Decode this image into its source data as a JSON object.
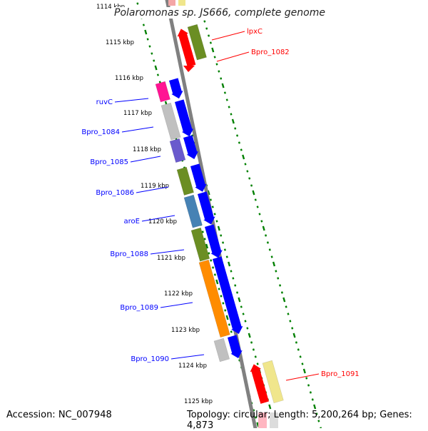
{
  "header": {
    "title": "Polaromonas sp. JS666, complete genome"
  },
  "footer": {
    "accession": "Accession: NC_007948",
    "topology": "Topology: circular; Length: 5,200,264 bp; Genes: 4,873"
  },
  "map": {
    "ruler_ticks": [
      "1114 kbp",
      "1115 kbp",
      "1116 kbp",
      "1117 kbp",
      "1118 kbp",
      "1119 kbp",
      "1120 kbp",
      "1121 kbp",
      "1122 kbp",
      "1123 kbp",
      "1124 kbp",
      "1125 kbp"
    ],
    "reverse_genes": [
      {
        "label": "lpxC",
        "color": "#ff0000"
      },
      {
        "label": "Bpro_1082",
        "color": "#6b8e23"
      },
      {
        "label": "Bpro_1091",
        "color": "#f0e68c"
      }
    ],
    "forward_genes": [
      {
        "label": "ruvC",
        "color": "#ff1493"
      },
      {
        "label": "Bpro_1084",
        "color": "#c0c0c0"
      },
      {
        "label": "Bpro_1085",
        "color": "#6a5acd"
      },
      {
        "label": "Bpro_1086",
        "color": "#6b8e23"
      },
      {
        "label": "aroE",
        "color": "#4682b4"
      },
      {
        "label": "Bpro_1088",
        "color": "#6b8e23"
      },
      {
        "label": "Bpro_1089",
        "color": "#ff8c00"
      },
      {
        "label": "Bpro_1090",
        "color": "#c0c0c0"
      }
    ],
    "colors": {
      "backbone": "#808080",
      "tick": "#008000",
      "forward_label": "#0000ff",
      "reverse_label": "#ff0000",
      "cds_forward": "#0000ff",
      "cds_reverse": "#ff0000"
    }
  }
}
